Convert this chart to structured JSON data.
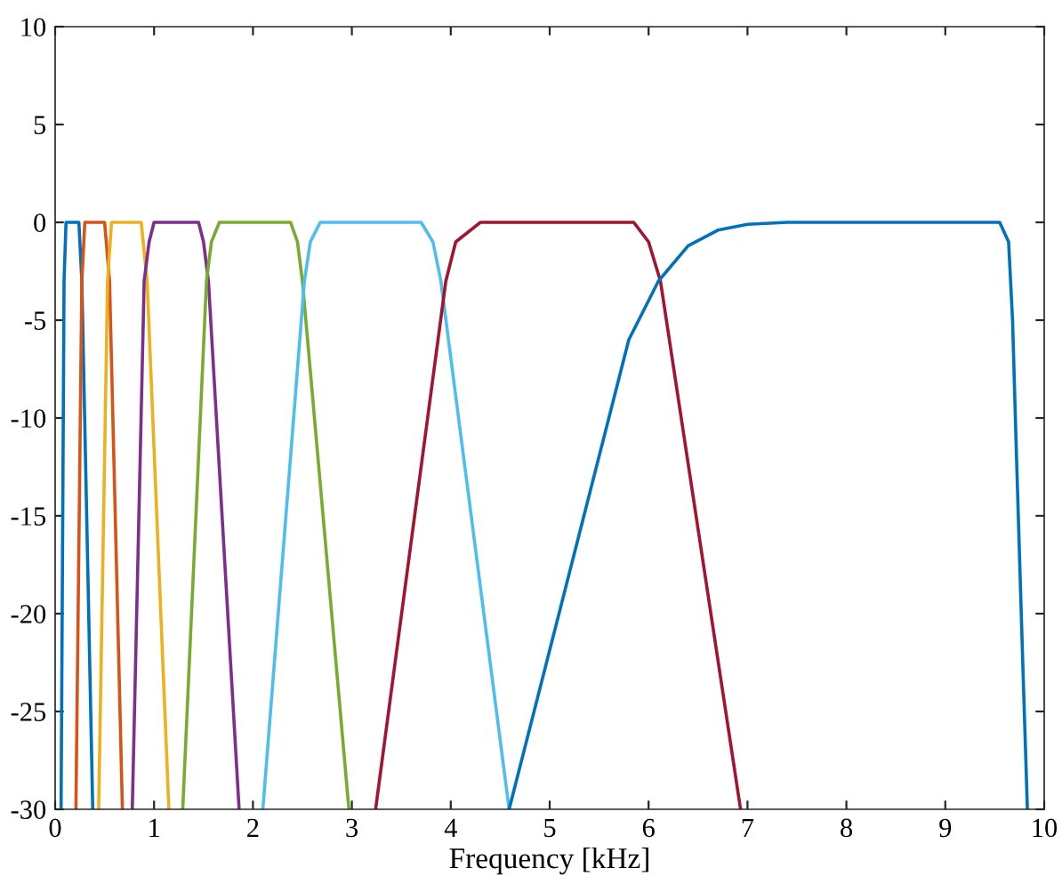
{
  "chart_data": {
    "type": "line",
    "xlabel": "Frequency [kHz]",
    "xlim": [
      0,
      10
    ],
    "xticks": [
      0,
      1,
      2,
      3,
      4,
      5,
      6,
      7,
      8,
      9,
      10
    ],
    "ylim": [
      -30,
      10
    ],
    "yticks": [
      -30,
      -25,
      -20,
      -15,
      -10,
      -5,
      0,
      5,
      10
    ],
    "grid": false,
    "marker": "none",
    "line_style": "solid",
    "series": [
      {
        "color": "#0072bd",
        "x": [
          0.06,
          0.09,
          0.11,
          0.24,
          0.27,
          0.38
        ],
        "values": [
          -30,
          -3,
          0,
          0,
          -3,
          -30
        ]
      },
      {
        "color": "#d95319",
        "x": [
          0.21,
          0.27,
          0.3,
          0.5,
          0.55,
          0.68
        ],
        "values": [
          -30,
          -3,
          0,
          0,
          -3,
          -30
        ]
      },
      {
        "color": "#edb120",
        "x": [
          0.44,
          0.53,
          0.57,
          0.87,
          0.93,
          1.15
        ],
        "values": [
          -30,
          -3,
          0,
          0,
          -3,
          -30
        ]
      },
      {
        "color": "#7e2f8e",
        "x": [
          0.78,
          0.9,
          0.95,
          1.0,
          1.45,
          1.5,
          1.55,
          1.86
        ],
        "values": [
          -30,
          -3,
          -1,
          0,
          0,
          -1,
          -3,
          -30
        ]
      },
      {
        "color": "#77ac30",
        "x": [
          1.29,
          1.53,
          1.58,
          1.66,
          2.38,
          2.45,
          2.5,
          2.97
        ],
        "values": [
          -30,
          -3,
          -1,
          0,
          0,
          -1,
          -3,
          -30
        ]
      },
      {
        "color": "#4dbeee",
        "x": [
          2.1,
          2.52,
          2.58,
          2.68,
          3.7,
          3.82,
          3.9,
          4.59
        ],
        "values": [
          -30,
          -3,
          -1,
          0,
          0,
          -1,
          -3,
          -30
        ]
      },
      {
        "color": "#a2142f",
        "x": [
          3.24,
          3.95,
          4.05,
          4.3,
          5.85,
          6.0,
          6.12,
          6.93
        ],
        "values": [
          -30,
          -3,
          -1,
          0,
          0,
          -1,
          -3,
          -30
        ]
      },
      {
        "color": "#0072bd",
        "x": [
          4.59,
          5.8,
          6.1,
          6.4,
          6.7,
          7.0,
          7.4,
          9.55,
          9.64,
          9.68,
          9.72,
          9.78,
          9.83
        ],
        "values": [
          -30,
          -6,
          -3,
          -1.2,
          -0.4,
          -0.1,
          0,
          0,
          -1,
          -5,
          -12,
          -22,
          -30
        ]
      }
    ]
  }
}
